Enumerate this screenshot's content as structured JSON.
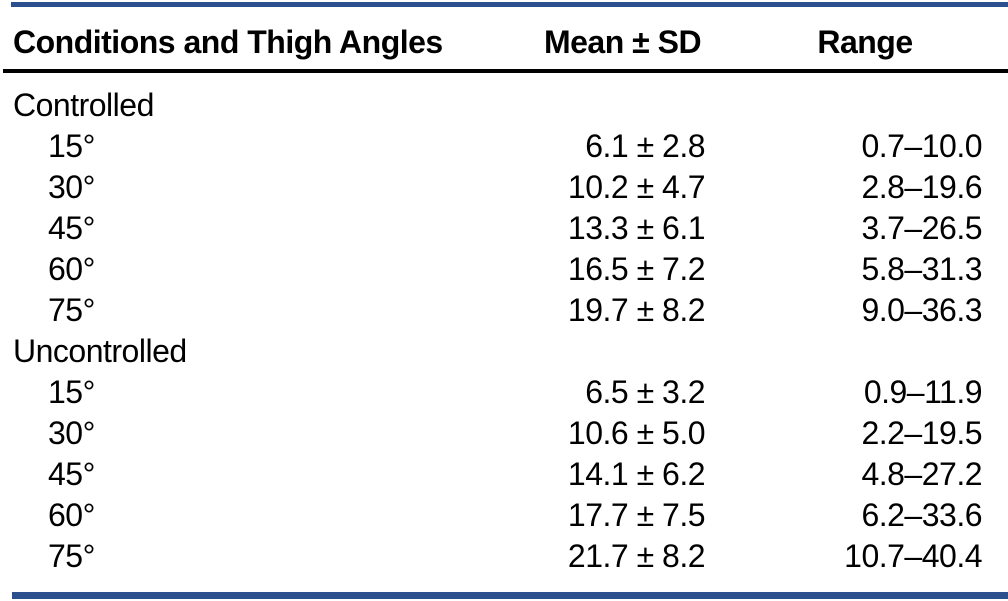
{
  "page": {
    "background": "#ffffff",
    "accent_bar_color": "#2c4f8e",
    "rule_color": "#000000",
    "text_color": "#000000"
  },
  "table": {
    "columns": [
      {
        "label": "Conditions and Thigh Angles"
      },
      {
        "label": "Mean ± SD"
      },
      {
        "label": "Range"
      }
    ],
    "sections": [
      {
        "label": "Controlled",
        "rows": [
          {
            "angle": "15°",
            "mean_sd": "6.1 ± 2.8",
            "range": "0.7–10.0"
          },
          {
            "angle": "30°",
            "mean_sd": "10.2 ± 4.7",
            "range": "2.8–19.6"
          },
          {
            "angle": "45°",
            "mean_sd": "13.3 ± 6.1",
            "range": "3.7–26.5"
          },
          {
            "angle": "60°",
            "mean_sd": "16.5 ± 7.2",
            "range": "5.8–31.3"
          },
          {
            "angle": "75°",
            "mean_sd": "19.7 ± 8.2",
            "range": "9.0–36.3"
          }
        ]
      },
      {
        "label": "Uncontrolled",
        "rows": [
          {
            "angle": "15°",
            "mean_sd": "6.5 ± 3.2",
            "range": "0.9–11.9"
          },
          {
            "angle": "30°",
            "mean_sd": "10.6 ± 5.0",
            "range": "2.2–19.5"
          },
          {
            "angle": "45°",
            "mean_sd": "14.1 ± 6.2",
            "range": "4.8–27.2"
          },
          {
            "angle": "60°",
            "mean_sd": "17.7 ± 7.5",
            "range": "6.2–33.6"
          },
          {
            "angle": "75°",
            "mean_sd": "21.7 ± 8.2",
            "range": "10.7–40.4"
          }
        ]
      }
    ]
  }
}
